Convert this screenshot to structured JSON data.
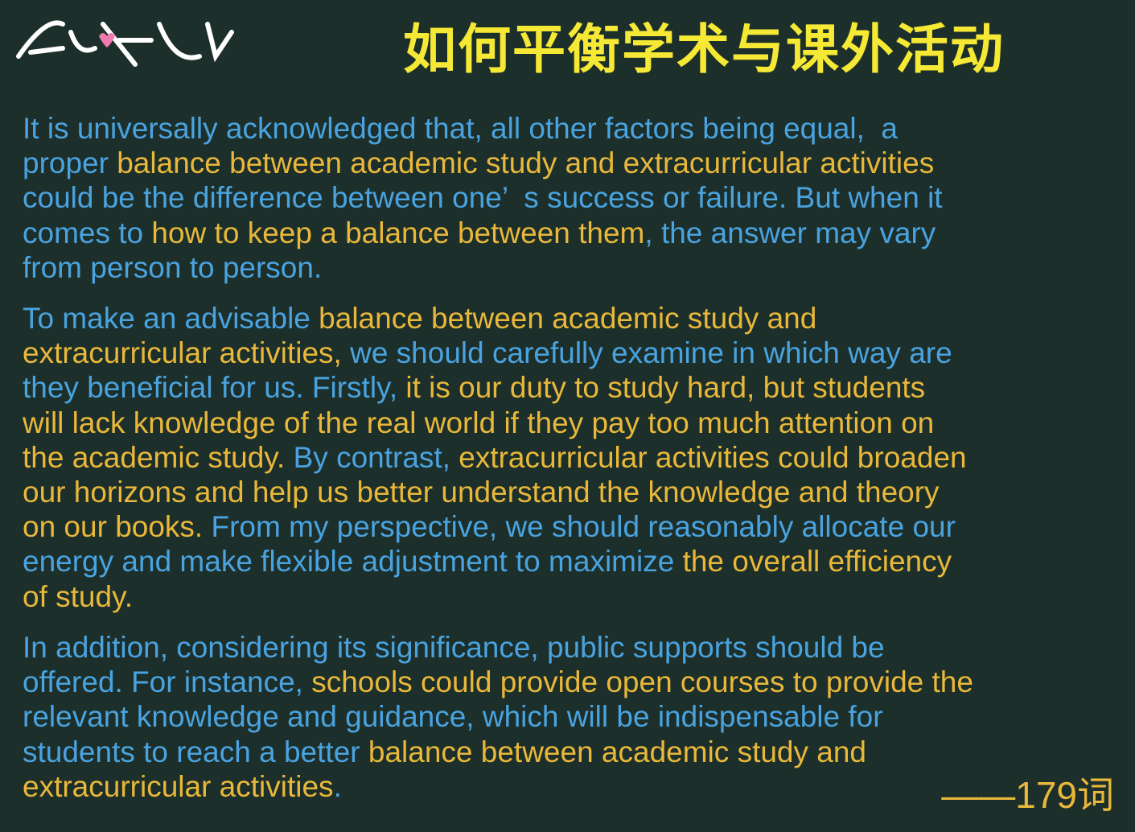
{
  "header": {
    "title": "如何平衡学术与课外活动"
  },
  "paragraphs": [
    {
      "lines": [
        [
          {
            "text": "It is universally acknowledged that, all other factors being equal,  a",
            "color": "#4aa3df"
          }
        ],
        [
          {
            "text": "proper ",
            "color": "#4aa3df"
          },
          {
            "text": "balance between academic study and extracurricular activities",
            "color": "#e9b83a"
          }
        ],
        [
          {
            "text": "could be the difference between one’  s success or failure. But when it",
            "color": "#4aa3df"
          }
        ],
        [
          {
            "text": "comes to ",
            "color": "#4aa3df"
          },
          {
            "text": "how to keep a balance between them",
            "color": "#e9b83a"
          },
          {
            "text": ", the answer may vary",
            "color": "#4aa3df"
          }
        ],
        [
          {
            "text": "from person to person.",
            "color": "#4aa3df"
          }
        ]
      ]
    },
    {
      "lines": [
        [
          {
            "text": "To make an advisable ",
            "color": "#4aa3df"
          },
          {
            "text": "balance between academic study and",
            "color": "#e9b83a"
          }
        ],
        [
          {
            "text": "extracurricular activities, ",
            "color": "#e9b83a"
          },
          {
            "text": "we should carefully examine in which way are",
            "color": "#4aa3df"
          }
        ],
        [
          {
            "text": "they beneficial for us. Firstly, ",
            "color": "#4aa3df"
          },
          {
            "text": "it is our duty to study hard, but students",
            "color": "#e9b83a"
          }
        ],
        [
          {
            "text": "will lack knowledge of the real world if they pay too much attention on",
            "color": "#e9b83a"
          }
        ],
        [
          {
            "text": "the academic study. ",
            "color": "#e9b83a"
          },
          {
            "text": "By contrast, ",
            "color": "#4aa3df"
          },
          {
            "text": "extracurricular activities could broaden",
            "color": "#e9b83a"
          }
        ],
        [
          {
            "text": "our horizons and help us better understand the knowledge and theory",
            "color": "#e9b83a"
          }
        ],
        [
          {
            "text": "on our books. ",
            "color": "#e9b83a"
          },
          {
            "text": "From my perspective, we should reasonably allocate our",
            "color": "#4aa3df"
          }
        ],
        [
          {
            "text": "energy and make flexible adjustment to maximize ",
            "color": "#4aa3df"
          },
          {
            "text": "the overall efficiency",
            "color": "#e9b83a"
          }
        ],
        [
          {
            "text": "of study.",
            "color": "#e9b83a"
          }
        ]
      ]
    },
    {
      "lines": [
        [
          {
            "text": "In addition, considering its significance, public supports should be",
            "color": "#4aa3df"
          }
        ],
        [
          {
            "text": "offered. For instance, ",
            "color": "#4aa3df"
          },
          {
            "text": "schools could provide open courses to provide the",
            "color": "#e9b83a"
          }
        ],
        [
          {
            "text": "relevant knowledge and guidance, which will be indispensable for",
            "color": "#4aa3df"
          }
        ],
        [
          {
            "text": "students to reach a better ",
            "color": "#4aa3df"
          },
          {
            "text": "balance between academic study and",
            "color": "#e9b83a"
          }
        ],
        [
          {
            "text": "extracurricular activities",
            "color": "#e9b83a"
          },
          {
            "text": ".",
            "color": "#4aa3df"
          }
        ]
      ]
    }
  ],
  "footer": {
    "word_count": "——179词"
  }
}
